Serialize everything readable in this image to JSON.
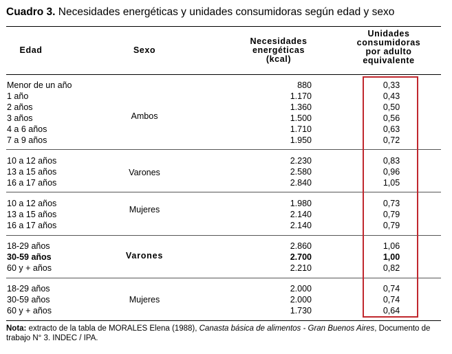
{
  "title": {
    "label": "Cuadro 3.",
    "text": " Necesidades energéticas y unidades consumidoras según edad y sexo"
  },
  "headers": {
    "edad": "Edad",
    "sexo": "Sexo",
    "kcal_1": "Necesidades",
    "kcal_2": "energéticas",
    "kcal_3": "(kcal)",
    "ucons_1": "Unidades",
    "ucons_2": "consumidoras",
    "ucons_3": "por adulto",
    "ucons_4": "equivalente"
  },
  "groups": [
    {
      "sexo": "Ambos",
      "bold": false,
      "rows": [
        {
          "edad": "Menor de un año",
          "kcal": "880",
          "ucons": "0,33"
        },
        {
          "edad": "1 año",
          "kcal": "1.170",
          "ucons": "0,43"
        },
        {
          "edad": "2 años",
          "kcal": "1.360",
          "ucons": "0,50"
        },
        {
          "edad": "3 años",
          "kcal": "1.500",
          "ucons": "0,56"
        },
        {
          "edad": "4 a 6 años",
          "kcal": "1.710",
          "ucons": "0,63"
        },
        {
          "edad": "7 a 9 años",
          "kcal": "1.950",
          "ucons": "0,72"
        }
      ]
    },
    {
      "sexo": "Varones",
      "bold": false,
      "rows": [
        {
          "edad": "10 a 12 años",
          "kcal": "2.230",
          "ucons": "0,83"
        },
        {
          "edad": "13 a 15 años",
          "kcal": "2.580",
          "ucons": "0,96"
        },
        {
          "edad": "16 a 17 años",
          "kcal": "2.840",
          "ucons": "1,05"
        }
      ]
    },
    {
      "sexo": "Mujeres",
      "bold": false,
      "rows": [
        {
          "edad": "10 a 12 años",
          "kcal": "1.980",
          "ucons": "0,73"
        },
        {
          "edad": "13 a 15 años",
          "kcal": "2.140",
          "ucons": "0,79"
        },
        {
          "edad": "16 a 17 años",
          "kcal": "2.140",
          "ucons": "0,79"
        }
      ]
    },
    {
      "sexo": "Varones",
      "bold": true,
      "rows": [
        {
          "edad": "18-29 años",
          "kcal": "2.860",
          "ucons": "1,06"
        },
        {
          "edad": "30-59 años",
          "kcal": "2.700",
          "ucons": "1,00",
          "bold": true
        },
        {
          "edad": "60 y + años",
          "kcal": "2.210",
          "ucons": "0,82"
        }
      ]
    },
    {
      "sexo": "Mujeres",
      "bold": false,
      "rows": [
        {
          "edad": "18-29 años",
          "kcal": "2.000",
          "ucons": "0,74"
        },
        {
          "edad": "30-59 años",
          "kcal": "2.000",
          "ucons": "0,74"
        },
        {
          "edad": "60 y + años",
          "kcal": "1.730",
          "ucons": "0,64"
        }
      ]
    }
  ],
  "note": {
    "label": "Nota:",
    "text_1": " extracto de la tabla de MORALES Elena (1988), ",
    "text_italic": "Canasta básica de alimentos - Gran Buenos Aires",
    "text_2": ", Documento de trabajo N° 3. INDEC / IPA."
  },
  "colors": {
    "highlight_box": "#c0272d"
  }
}
